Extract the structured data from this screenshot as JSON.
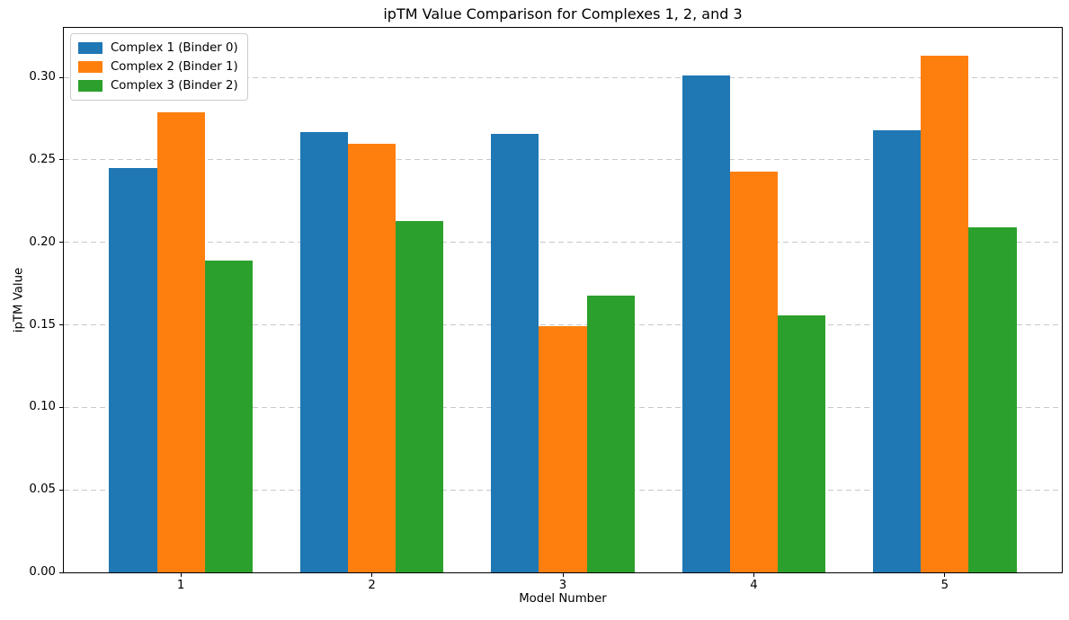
{
  "chart_data": {
    "type": "bar",
    "title": "ipTM Value Comparison for Complexes 1, 2, and 3",
    "xlabel": "Model Number",
    "ylabel": "ipTM Value",
    "categories": [
      "1",
      "2",
      "3",
      "4",
      "5"
    ],
    "series": [
      {
        "name": "Complex 1 (Binder 0)",
        "color": "#1f77b4",
        "values": [
          0.245,
          0.267,
          0.266,
          0.301,
          0.268
        ]
      },
      {
        "name": "Complex 2 (Binder 1)",
        "color": "#ff7f0e",
        "values": [
          0.279,
          0.26,
          0.149,
          0.243,
          0.313
        ]
      },
      {
        "name": "Complex 3 (Binder 2)",
        "color": "#2ca02c",
        "values": [
          0.189,
          0.213,
          0.168,
          0.156,
          0.209
        ]
      }
    ],
    "yticks": [
      0.0,
      0.05,
      0.1,
      0.15,
      0.2,
      0.25,
      0.3
    ],
    "ytick_labels": [
      "0.00",
      "0.05",
      "0.10",
      "0.15",
      "0.20",
      "0.25",
      "0.30"
    ],
    "ylim": [
      0,
      0.33
    ],
    "grid": "y-only, dashed",
    "legend_position": "upper-left",
    "bar_width_fraction": 0.25,
    "colors": {
      "grid": "#c9c9c9",
      "spine": "#000000",
      "background": "#ffffff",
      "legend_border": "#cccccc",
      "text": "#000000"
    }
  }
}
